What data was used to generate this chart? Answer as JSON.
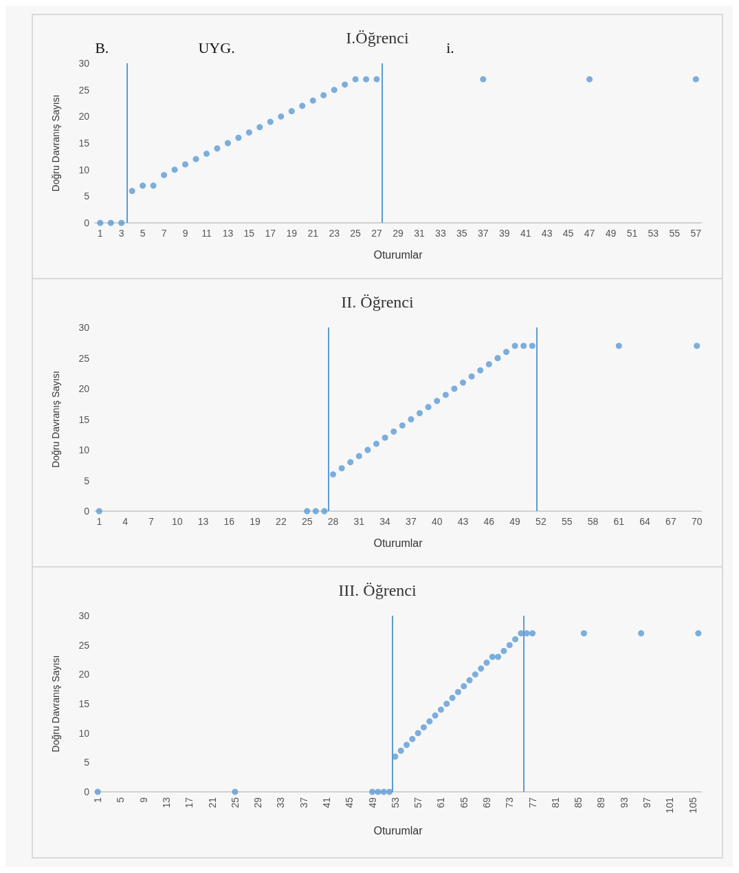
{
  "chart_data": [
    {
      "type": "scatter",
      "title": "I.Öğrenci",
      "xlabel": "Oturumlar",
      "ylabel": "Doğru Davranış Sayısı",
      "marker": "circle",
      "grid": false,
      "annotations": [
        "B.",
        "UYG.",
        "i."
      ],
      "x": [
        1,
        2,
        3,
        4,
        5,
        6,
        7,
        8,
        9,
        10,
        11,
        12,
        13,
        14,
        15,
        16,
        17,
        18,
        19,
        20,
        21,
        22,
        23,
        24,
        25,
        26,
        27,
        37,
        47,
        57
      ],
      "series": [
        {
          "color": "#5b9bd5",
          "values": [
            0,
            0,
            0,
            6,
            7,
            7,
            9,
            10,
            11,
            12,
            13,
            14,
            15,
            16,
            17,
            18,
            19,
            20,
            21,
            22,
            23,
            24,
            25,
            26,
            27,
            27,
            27,
            27,
            27,
            27
          ]
        }
      ],
      "xlim": [
        0.5,
        57.5
      ],
      "xticks": [
        1,
        3,
        5,
        7,
        9,
        11,
        13,
        15,
        17,
        19,
        21,
        23,
        25,
        27,
        29,
        31,
        33,
        35,
        37,
        39,
        41,
        43,
        45,
        47,
        49,
        51,
        53,
        55,
        57
      ],
      "ylim": [
        0,
        30
      ],
      "yticks": [
        0,
        5,
        10,
        15,
        20,
        25,
        30
      ],
      "ref_lines": [
        {
          "axis": "x",
          "value": 3.5,
          "color": "#5b9bd5"
        },
        {
          "axis": "x",
          "value": 27.5,
          "color": "#5b9bd5"
        }
      ]
    },
    {
      "type": "scatter",
      "title": "II. Öğrenci",
      "xlabel": "Oturumlar",
      "ylabel": "Doğru Davranış Sayısı",
      "marker": "circle",
      "grid": false,
      "x": [
        1,
        25,
        26,
        27,
        28,
        29,
        30,
        31,
        32,
        33,
        34,
        35,
        36,
        37,
        38,
        39,
        40,
        41,
        42,
        43,
        44,
        45,
        46,
        47,
        48,
        49,
        50,
        51,
        61,
        70
      ],
      "series": [
        {
          "color": "#5b9bd5",
          "values": [
            0,
            0,
            0,
            0,
            6,
            7,
            8,
            9,
            10,
            11,
            12,
            13,
            14,
            15,
            16,
            17,
            18,
            19,
            20,
            21,
            22,
            23,
            24,
            25,
            26,
            27,
            27,
            27,
            27,
            27
          ]
        }
      ],
      "xlim": [
        0.5,
        70.5
      ],
      "xticks": [
        1,
        4,
        7,
        10,
        13,
        16,
        19,
        22,
        25,
        28,
        31,
        34,
        37,
        40,
        43,
        46,
        49,
        52,
        55,
        58,
        61,
        64,
        67,
        70
      ],
      "ylim": [
        0,
        30
      ],
      "yticks": [
        0,
        5,
        10,
        15,
        20,
        25,
        30
      ],
      "ref_lines": [
        {
          "axis": "x",
          "value": 27.5,
          "color": "#5b9bd5"
        },
        {
          "axis": "x",
          "value": 51.5,
          "color": "#5b9bd5"
        }
      ]
    },
    {
      "type": "scatter",
      "title": "III. Öğrenci",
      "xlabel": "Oturumlar",
      "ylabel": "Doğru Davranış Sayısı",
      "marker": "circle",
      "grid": false,
      "x": [
        1,
        25,
        49,
        50,
        51,
        52,
        53,
        54,
        55,
        56,
        57,
        58,
        59,
        60,
        61,
        62,
        63,
        64,
        65,
        66,
        67,
        68,
        69,
        70,
        71,
        72,
        73,
        74,
        75,
        76,
        77,
        86,
        96,
        106
      ],
      "series": [
        {
          "color": "#5b9bd5",
          "values": [
            0,
            0,
            0,
            0,
            0,
            0,
            6,
            7,
            8,
            9,
            10,
            11,
            12,
            13,
            14,
            15,
            16,
            17,
            18,
            19,
            20,
            21,
            22,
            23,
            23,
            24,
            25,
            26,
            27,
            27,
            27,
            27,
            27,
            27
          ]
        }
      ],
      "xlim": [
        0.5,
        106.5
      ],
      "xticks": [
        1,
        5,
        9,
        13,
        17,
        21,
        25,
        29,
        33,
        37,
        41,
        45,
        49,
        53,
        57,
        61,
        65,
        69,
        73,
        77,
        81,
        85,
        89,
        93,
        97,
        101,
        105
      ],
      "ylim": [
        0,
        30
      ],
      "yticks": [
        0,
        5,
        10,
        15,
        20,
        25,
        30
      ],
      "ref_lines": [
        {
          "axis": "x",
          "value": 52.5,
          "color": "#5b9bd5"
        },
        {
          "axis": "x",
          "value": 75.5,
          "color": "#5b9bd5"
        }
      ]
    }
  ]
}
